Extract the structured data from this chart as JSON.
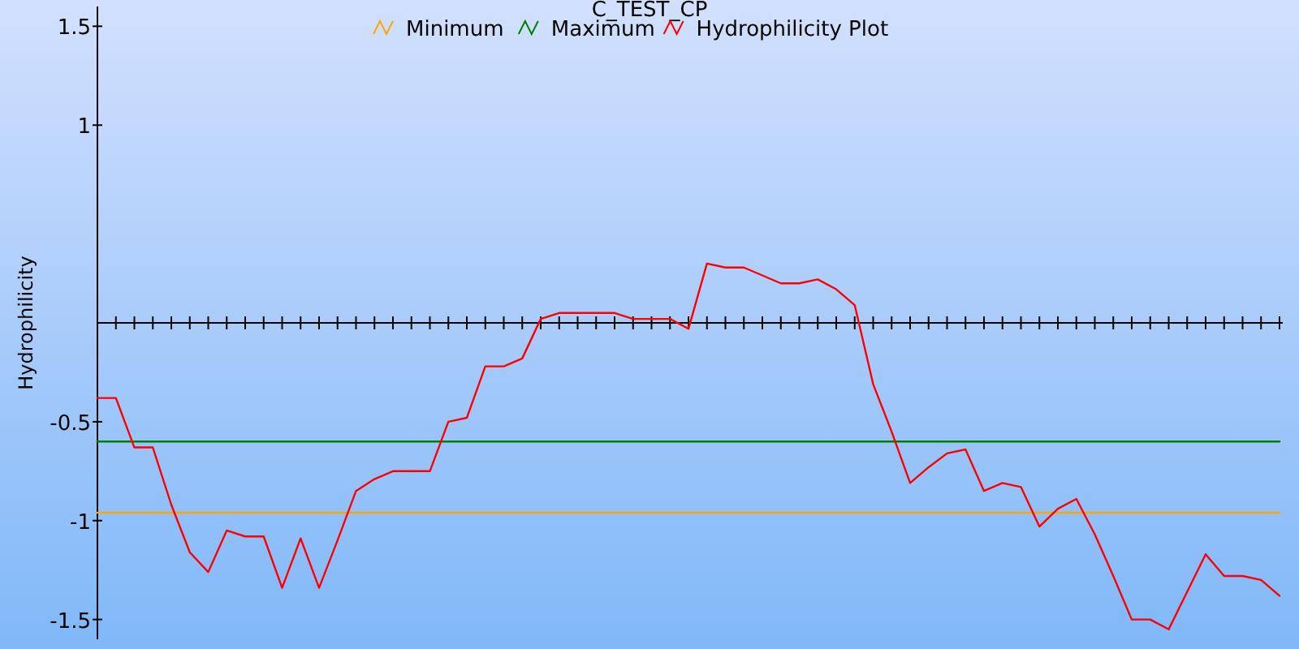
{
  "chart_data": {
    "type": "line",
    "title": "C_TEST_CP",
    "ylabel": "Hydrophilicity",
    "categories": [
      null,
      null,
      null,
      null,
      null,
      null,
      null,
      null,
      null,
      null,
      null,
      null,
      null,
      null,
      null,
      null,
      null,
      null,
      null,
      null,
      null,
      null,
      null,
      null,
      null,
      null,
      null,
      null,
      null,
      null,
      null,
      null,
      null,
      null,
      null,
      null,
      null,
      null,
      null,
      null,
      null,
      null,
      null,
      null,
      null,
      null,
      null,
      null,
      null,
      null,
      null,
      null,
      null,
      null,
      null,
      null,
      null,
      null,
      null,
      null,
      null,
      null,
      null,
      null,
      null
    ],
    "ylim": [
      -1.6,
      1.6
    ],
    "yticks": [
      -1.5,
      -1,
      -0.5,
      1,
      1.5
    ],
    "legend": "top",
    "series": [
      {
        "name": "Minimum",
        "color": "#ffa500",
        "values": [
          -0.96,
          -0.96,
          -0.96,
          -0.96,
          -0.96,
          -0.96,
          -0.96,
          -0.96,
          -0.96,
          -0.96,
          -0.96,
          -0.96,
          -0.96,
          -0.96,
          -0.96,
          -0.96,
          -0.96,
          -0.96,
          -0.96,
          -0.96,
          -0.96,
          -0.96,
          -0.96,
          -0.96,
          -0.96,
          -0.96,
          -0.96,
          -0.96,
          -0.96,
          -0.96,
          -0.96,
          -0.96,
          -0.96,
          -0.96,
          -0.96,
          -0.96,
          -0.96,
          -0.96,
          -0.96,
          -0.96,
          -0.96,
          -0.96,
          -0.96,
          -0.96,
          -0.96,
          -0.96,
          -0.96,
          -0.96,
          -0.96,
          -0.96,
          -0.96,
          -0.96,
          -0.96,
          -0.96,
          -0.96,
          -0.96,
          -0.96,
          -0.96,
          -0.96,
          -0.96,
          -0.96,
          -0.96,
          -0.96,
          -0.96,
          -0.96
        ]
      },
      {
        "name": "Maximum",
        "color": "#008000",
        "values": [
          -0.6,
          -0.6,
          -0.6,
          -0.6,
          -0.6,
          -0.6,
          -0.6,
          -0.6,
          -0.6,
          -0.6,
          -0.6,
          -0.6,
          -0.6,
          -0.6,
          -0.6,
          -0.6,
          -0.6,
          -0.6,
          -0.6,
          -0.6,
          -0.6,
          -0.6,
          -0.6,
          -0.6,
          -0.6,
          -0.6,
          -0.6,
          -0.6,
          -0.6,
          -0.6,
          -0.6,
          -0.6,
          -0.6,
          -0.6,
          -0.6,
          -0.6,
          -0.6,
          -0.6,
          -0.6,
          -0.6,
          -0.6,
          -0.6,
          -0.6,
          -0.6,
          -0.6,
          -0.6,
          -0.6,
          -0.6,
          -0.6,
          -0.6,
          -0.6,
          -0.6,
          -0.6,
          -0.6,
          -0.6,
          -0.6,
          -0.6,
          -0.6,
          -0.6,
          -0.6,
          -0.6,
          -0.6,
          -0.6,
          -0.6,
          -0.6
        ]
      },
      {
        "name": "Hydrophilicity Plot",
        "color": "#ff0000",
        "values": [
          -0.38,
          -0.38,
          -0.63,
          -0.63,
          -0.92,
          -1.16,
          -1.26,
          -1.05,
          -1.08,
          -1.08,
          -1.34,
          -1.09,
          -1.34,
          -1.1,
          -0.85,
          -0.79,
          -0.75,
          -0.75,
          -0.75,
          -0.5,
          -0.48,
          -0.22,
          -0.22,
          -0.18,
          0.02,
          0.05,
          0.05,
          0.05,
          0.05,
          0.02,
          0.02,
          0.02,
          -0.03,
          0.3,
          0.28,
          0.28,
          0.24,
          0.2,
          0.2,
          0.22,
          0.17,
          0.09,
          -0.31,
          -0.55,
          -0.81,
          -0.73,
          -0.66,
          -0.64,
          -0.85,
          -0.81,
          -0.83,
          -1.03,
          -0.94,
          -0.89,
          -1.07,
          -1.28,
          -1.5,
          -1.5,
          -1.55,
          -1.36,
          -1.17,
          -1.28,
          -1.28,
          -1.3,
          -1.38
        ]
      }
    ]
  }
}
